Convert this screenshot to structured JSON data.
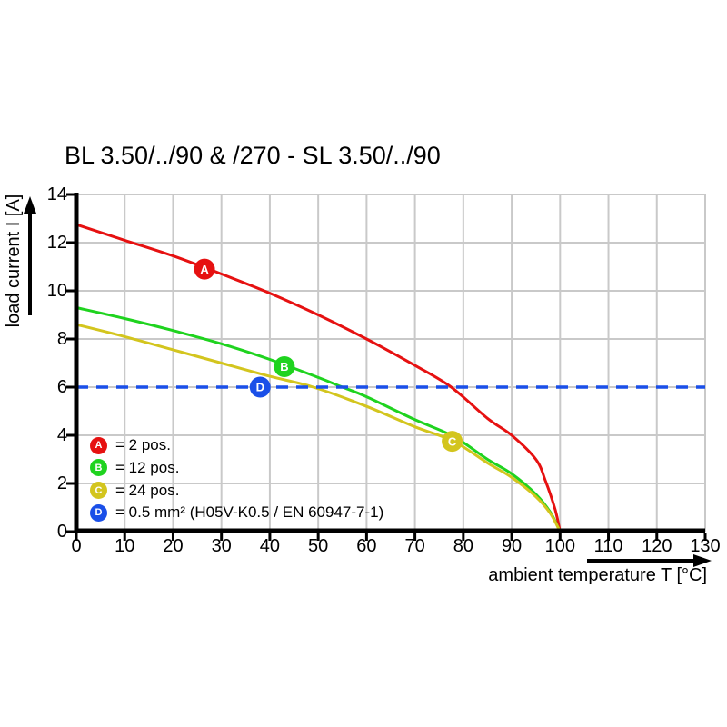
{
  "colors": {
    "red": "#e61111",
    "green": "#1fd31f",
    "yellow": "#d3c51e",
    "blue": "#1a4fe8",
    "grid": "#c9c9c9",
    "axis": "#000000",
    "marker_letter": "#ffffff"
  },
  "legend": {
    "items": [
      {
        "id": "A",
        "label": "= 2 pos.",
        "color_key": "red"
      },
      {
        "id": "B",
        "label": "= 12 pos.",
        "color_key": "green"
      },
      {
        "id": "C",
        "label": "= 24 pos.",
        "color_key": "yellow"
      },
      {
        "id": "D",
        "label": "= 0.5 mm² (H05V-K0.5 / EN 60947-7-1)",
        "color_key": "blue"
      }
    ]
  },
  "chart_data": {
    "type": "line",
    "title": "BL 3.50/../90 & /270 - SL 3.50/../90",
    "xlabel": "ambient temperature T [°C]",
    "ylabel": "load current I [A]",
    "xlim": [
      0,
      130
    ],
    "ylim": [
      0,
      14
    ],
    "x_ticks": [
      0,
      10,
      20,
      30,
      40,
      50,
      60,
      70,
      80,
      90,
      100,
      110,
      120,
      130
    ],
    "y_ticks": [
      0,
      2,
      4,
      6,
      8,
      10,
      12,
      14
    ],
    "grid": true,
    "legend_position": "inside-bottom-left",
    "series": [
      {
        "id": "A",
        "name": "2 pos.",
        "color_key": "red",
        "style": "solid",
        "marker_at": [
          26.5,
          10.9
        ],
        "points": [
          [
            0,
            12.75
          ],
          [
            10,
            12.1
          ],
          [
            20,
            11.45
          ],
          [
            30,
            10.7
          ],
          [
            40,
            9.9
          ],
          [
            50,
            9.0
          ],
          [
            60,
            8.0
          ],
          [
            70,
            6.9
          ],
          [
            77.5,
            6.0
          ],
          [
            85,
            4.7
          ],
          [
            90,
            4.0
          ],
          [
            95,
            3.0
          ],
          [
            97,
            2.1
          ],
          [
            99,
            0.9
          ],
          [
            100,
            0
          ]
        ]
      },
      {
        "id": "B",
        "name": "12 pos.",
        "color_key": "green",
        "style": "solid",
        "marker_at": [
          43,
          6.85
        ],
        "points": [
          [
            0,
            9.3
          ],
          [
            10,
            8.85
          ],
          [
            20,
            8.35
          ],
          [
            30,
            7.8
          ],
          [
            40,
            7.15
          ],
          [
            50,
            6.4
          ],
          [
            55,
            6.0
          ],
          [
            60,
            5.6
          ],
          [
            70,
            4.65
          ],
          [
            78,
            3.95
          ],
          [
            85,
            3.0
          ],
          [
            90,
            2.4
          ],
          [
            95,
            1.55
          ],
          [
            98,
            0.8
          ],
          [
            100,
            0
          ]
        ]
      },
      {
        "id": "C",
        "name": "24 pos.",
        "color_key": "yellow",
        "style": "solid",
        "marker_at": [
          77.7,
          3.75
        ],
        "points": [
          [
            0,
            8.6
          ],
          [
            10,
            8.1
          ],
          [
            20,
            7.55
          ],
          [
            30,
            7.0
          ],
          [
            40,
            6.45
          ],
          [
            49,
            6.0
          ],
          [
            60,
            5.2
          ],
          [
            70,
            4.35
          ],
          [
            78,
            3.75
          ],
          [
            85,
            2.85
          ],
          [
            90,
            2.25
          ],
          [
            95,
            1.45
          ],
          [
            98,
            0.75
          ],
          [
            100,
            0
          ]
        ]
      },
      {
        "id": "D",
        "name": "0.5 mm² (H05V-K0.5 / EN 60947-7-1)",
        "color_key": "blue",
        "style": "dashed",
        "marker_at": [
          38,
          6
        ],
        "points": [
          [
            0,
            6
          ],
          [
            130,
            6
          ]
        ]
      }
    ]
  }
}
